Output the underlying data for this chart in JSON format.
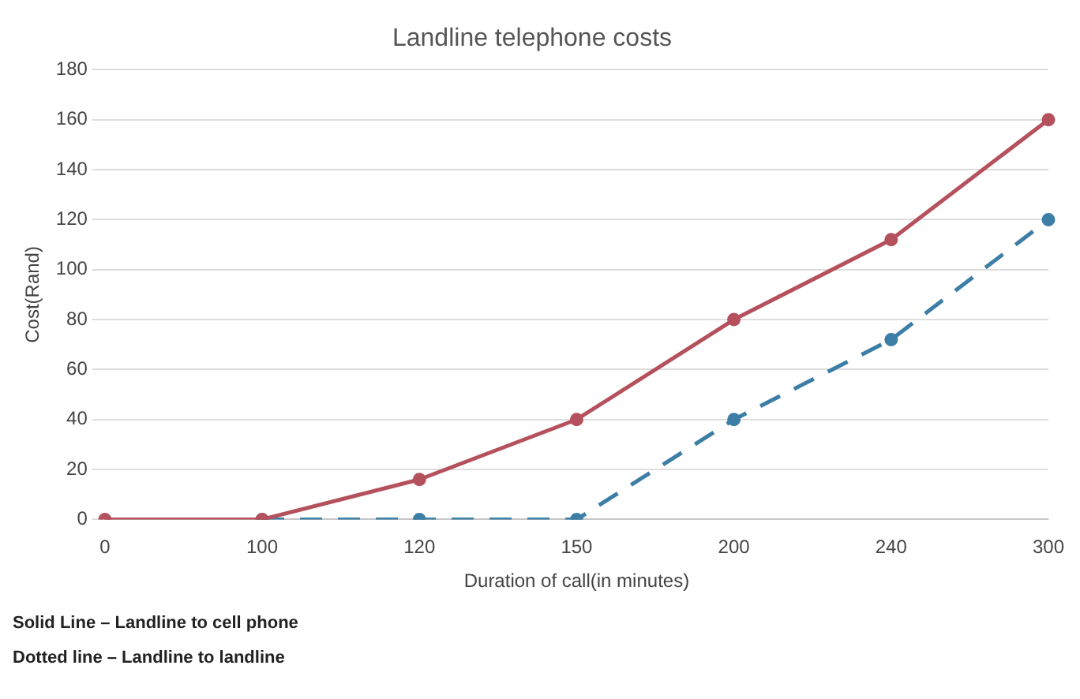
{
  "chart_data": {
    "type": "line",
    "title": "Landline telephone costs",
    "xlabel": "Duration of call(in minutes)",
    "ylabel": "Cost(Rand)",
    "categories": [
      "0",
      "100",
      "120",
      "150",
      "200",
      "240",
      "300"
    ],
    "series": [
      {
        "color": "#b5515c",
        "values": [
          0,
          0,
          16,
          40,
          80,
          112,
          160
        ],
        "line_style": "solid"
      },
      {
        "color": "#3d7ea6",
        "values": [
          null,
          0,
          0,
          0,
          40,
          72,
          120
        ],
        "line_style": "dashed"
      }
    ],
    "ylim": [
      0,
      180
    ],
    "yticks": [
      0,
      20,
      40,
      60,
      80,
      100,
      120,
      140,
      160,
      180
    ],
    "grid": "y",
    "legend": false,
    "marker": "circle",
    "annotations": [
      "Solid Line – Landline to cell phone",
      "Dotted line – Landline to landline"
    ]
  }
}
